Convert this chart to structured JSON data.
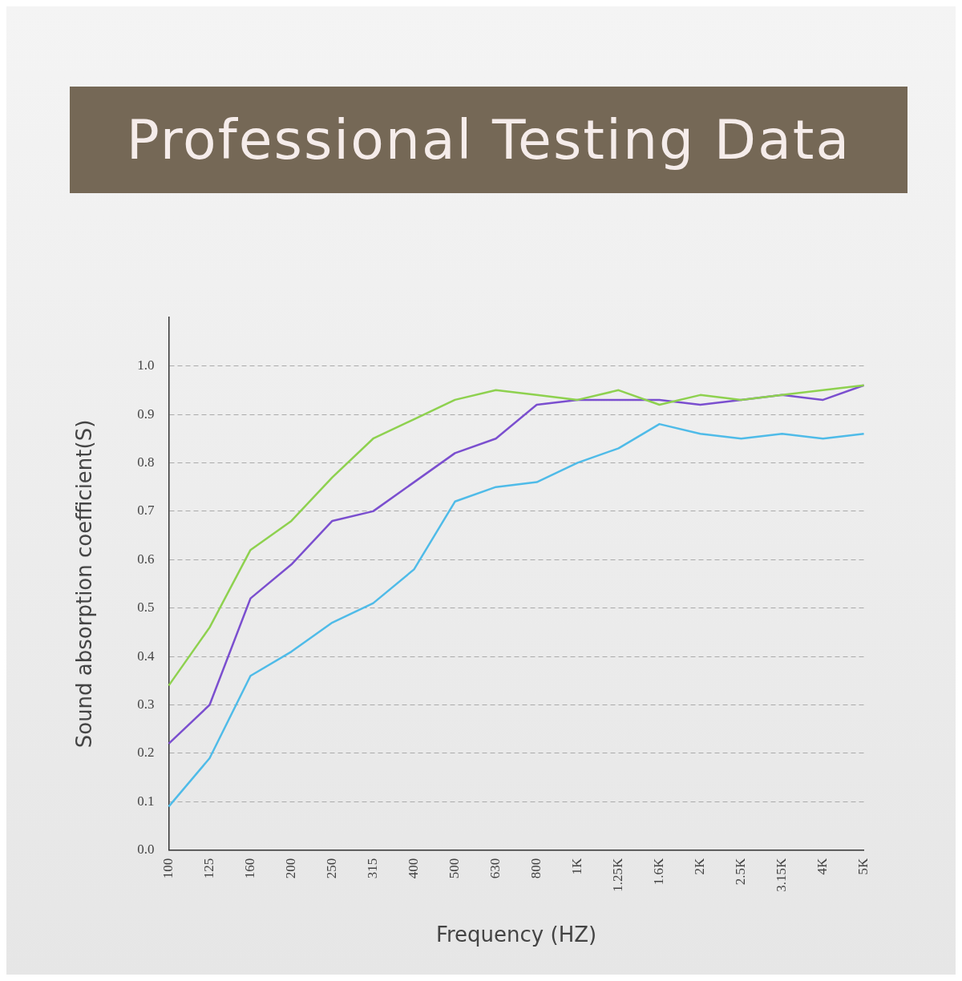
{
  "chart_data": {
    "type": "line",
    "title": "Professional Testing Data",
    "xlabel": "Frequency (HZ)",
    "ylabel": "Sound absorption coefficient(S)",
    "categories": [
      "100",
      "125",
      "160",
      "200",
      "250",
      "315",
      "400",
      "500",
      "630",
      "800",
      "1K",
      "1.25K",
      "1.6K",
      "2K",
      "2.5K",
      "3.15K",
      "4K",
      "5K"
    ],
    "series": [
      {
        "color": "#8ed14f",
        "values": [
          0.34,
          0.46,
          0.62,
          0.68,
          0.77,
          0.85,
          0.89,
          0.93,
          0.95,
          0.94,
          0.93,
          0.95,
          0.92,
          0.94,
          0.93,
          0.94,
          0.95,
          0.96
        ]
      },
      {
        "color": "#7b4fcf",
        "values": [
          0.22,
          0.3,
          0.52,
          0.59,
          0.68,
          0.7,
          0.76,
          0.82,
          0.85,
          0.92,
          0.93,
          0.93,
          0.93,
          0.92,
          0.93,
          0.94,
          0.93,
          0.96
        ]
      },
      {
        "color": "#4fbbe8",
        "values": [
          0.09,
          0.19,
          0.36,
          0.41,
          0.47,
          0.51,
          0.58,
          0.72,
          0.75,
          0.76,
          0.8,
          0.83,
          0.88,
          0.86,
          0.85,
          0.86,
          0.85,
          0.86
        ]
      }
    ],
    "ylim": [
      0,
      1.1
    ],
    "yticks": [
      {
        "value": 0,
        "label": "0.0"
      },
      0.1,
      0.2,
      0.3,
      0.4,
      0.5,
      0.6,
      0.7,
      0.8,
      0.9,
      {
        "value": 1,
        "label": "1.0"
      }
    ],
    "grid": "y",
    "legend": false,
    "marker": "none"
  }
}
